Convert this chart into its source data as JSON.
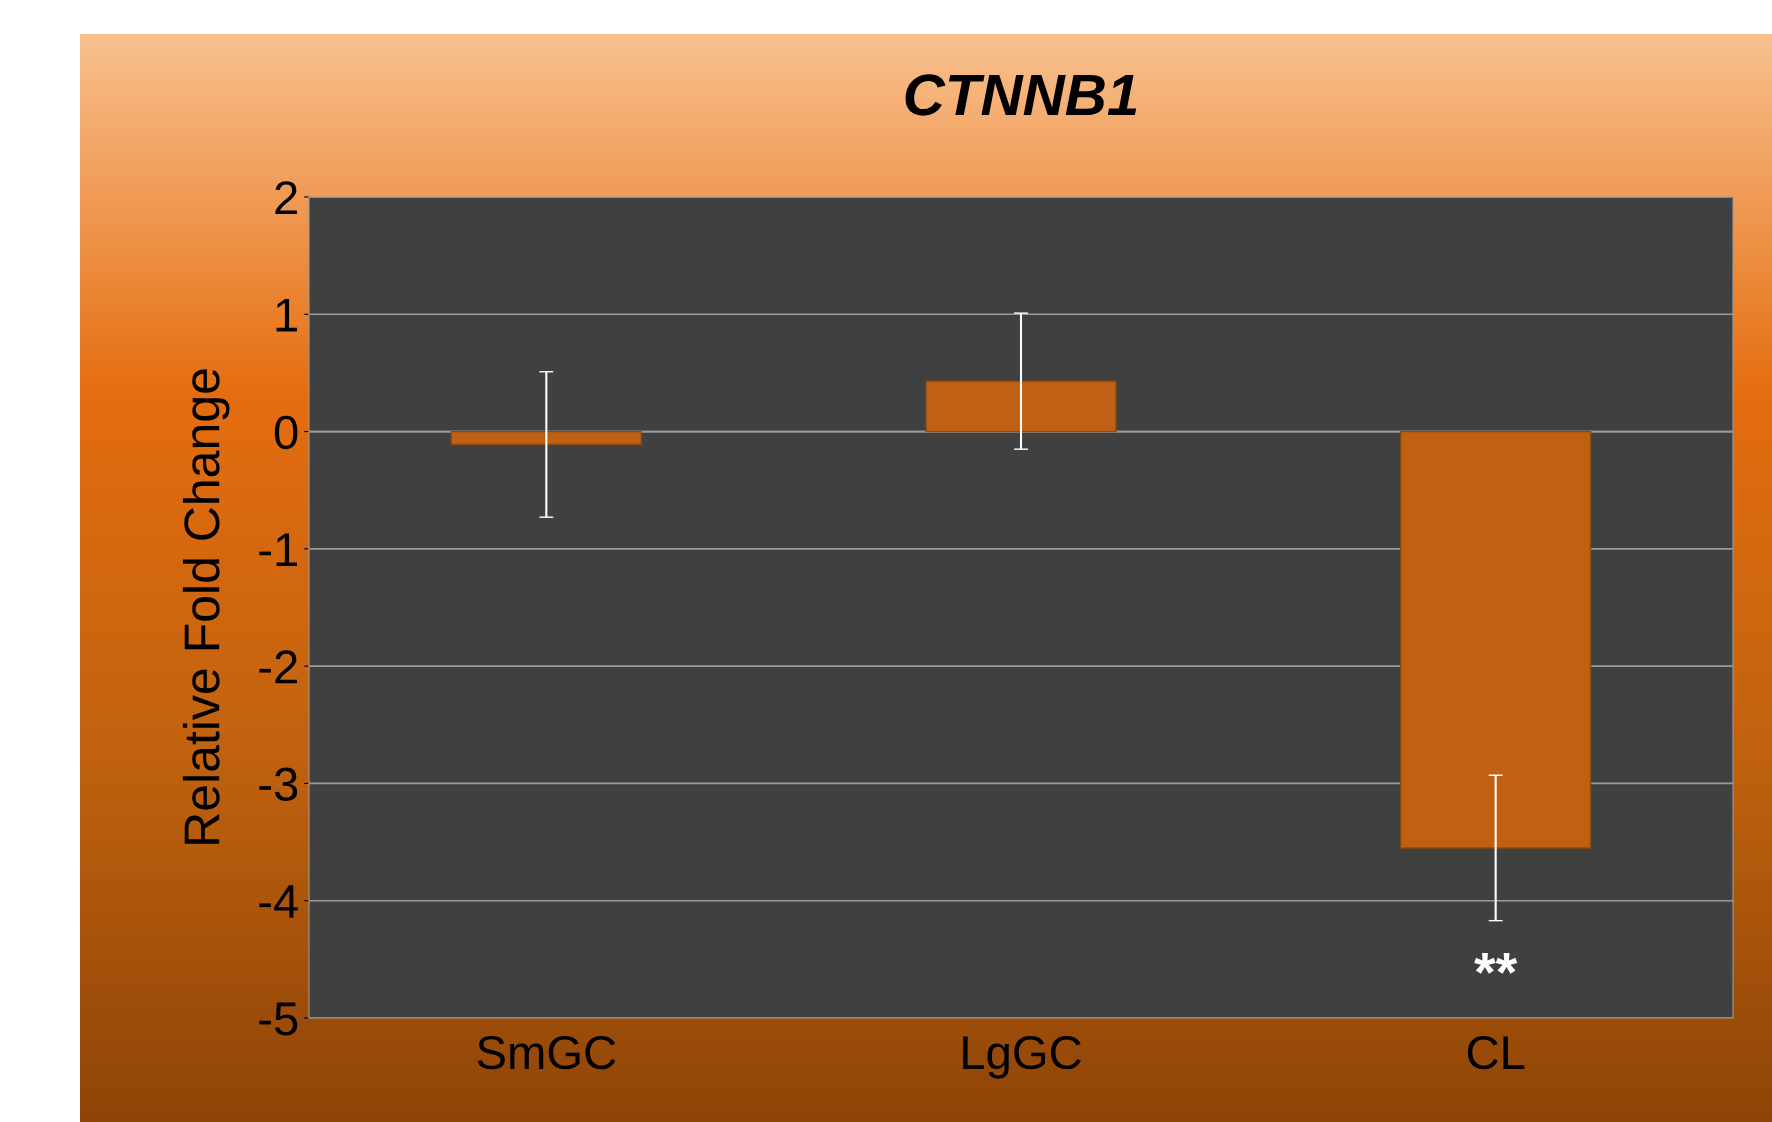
{
  "chart_data": {
    "type": "bar",
    "title": "CTNNB1",
    "ylabel": "Relative Fold Change",
    "categories": [
      "SmGC",
      "LgGC",
      "CL"
    ],
    "values": [
      -0.11,
      0.43,
      -3.55
    ],
    "errors": [
      0.62,
      0.58,
      0.62
    ],
    "color": "#c06015",
    "ylim": [
      -5,
      2
    ],
    "yticks": [
      -5,
      -4,
      -3,
      -2,
      -1,
      0,
      1,
      2
    ],
    "grid": "y",
    "annotations": [
      "**"
    ]
  }
}
